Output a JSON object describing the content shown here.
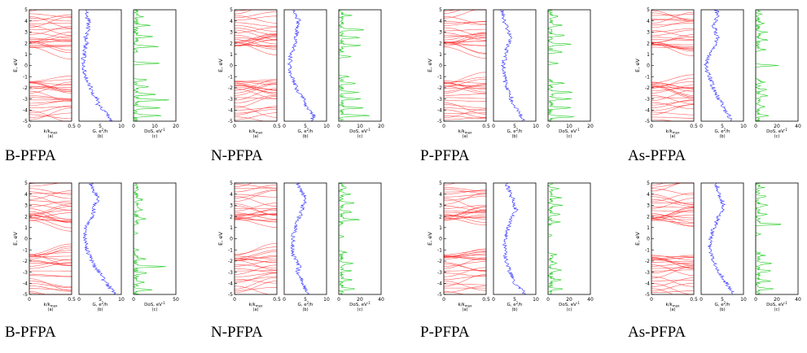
{
  "figure": {
    "captions": [
      "B-PFPA",
      "N-PFPA",
      "P-PFPA",
      "As-PFPA",
      "B-PFPA",
      "N-PFPA",
      "P-PFPA",
      "As-PFPA"
    ],
    "common": {
      "ylabel": "E, eV",
      "ylim": [
        -5,
        5
      ],
      "yticks": [
        "5",
        "4",
        "3",
        "2",
        "1",
        "0",
        "-1",
        "-2",
        "-3",
        "-4",
        "-5"
      ],
      "band_xlabel": "k/k",
      "band_xlabel_sub": "max",
      "g_xlabel": "G, e",
      "g_xlabel_sup": "2",
      "g_xlabel_tail": "/h",
      "dos_xlabel": "DoS, eV",
      "dos_xlabel_sup": "-1",
      "panel_tags": [
        "(a)",
        "(b)",
        "(c)"
      ],
      "colors": {
        "bands": "#ff3333",
        "conductance": "#3333ff",
        "dos": "#22cc22",
        "axis": "#000000"
      }
    }
  },
  "chart_data": [
    {
      "type": "line",
      "title": "B-PFPA",
      "band_xlim": [
        0,
        0.5
      ],
      "band_xticks": [
        "0",
        "0.5"
      ],
      "g_xlim": [
        0,
        10
      ],
      "g_xticks": [
        "0",
        "5",
        "10"
      ],
      "dos_xlim": [
        0,
        20
      ],
      "dos_xticks": [
        "0",
        "10",
        "20"
      ],
      "g_profile": [
        [
          -5,
          7.5
        ],
        [
          -4.5,
          7
        ],
        [
          -4,
          5.5
        ],
        [
          -3.5,
          4.5
        ],
        [
          -3,
          4.2
        ],
        [
          -2.5,
          3.2
        ],
        [
          -2,
          2.8
        ],
        [
          -1.5,
          2.2
        ],
        [
          -1,
          1.5
        ],
        [
          -0.5,
          1.2
        ],
        [
          0,
          1.0
        ],
        [
          0.5,
          1.0
        ],
        [
          1,
          1.2
        ],
        [
          1.5,
          1.5
        ],
        [
          2,
          1.8
        ],
        [
          2.5,
          1.6
        ],
        [
          3,
          2.0
        ],
        [
          3.5,
          2.2
        ],
        [
          4,
          2.4
        ],
        [
          4.5,
          1.7
        ],
        [
          5,
          1.6
        ]
      ],
      "dos_peaks": [
        [
          -4.5,
          13
        ],
        [
          -3.8,
          11
        ],
        [
          -3.1,
          15
        ],
        [
          -2.6,
          10
        ],
        [
          -1.9,
          6
        ],
        [
          -1.3,
          5
        ],
        [
          0.2,
          13
        ],
        [
          1.7,
          10
        ],
        [
          2.6,
          9
        ],
        [
          3.6,
          6
        ],
        [
          4.4,
          3
        ]
      ]
    },
    {
      "type": "line",
      "title": "N-PFPA",
      "band_xlim": [
        0,
        0.5
      ],
      "band_xticks": [
        "0",
        "0.5"
      ],
      "g_xlim": [
        0,
        10
      ],
      "g_xticks": [
        "0",
        "5",
        "10"
      ],
      "dos_xlim": [
        0,
        20
      ],
      "dos_xticks": [
        "0",
        "10",
        "20"
      ],
      "g_profile": [
        [
          -5,
          6.5
        ],
        [
          -4.5,
          7
        ],
        [
          -4,
          6
        ],
        [
          -3.5,
          5
        ],
        [
          -3,
          4.5
        ],
        [
          -2.5,
          3.5
        ],
        [
          -2,
          2.8
        ],
        [
          -1.5,
          2.5
        ],
        [
          -1,
          1.6
        ],
        [
          -0.5,
          1.4
        ],
        [
          0,
          1.2
        ],
        [
          0.5,
          1.4
        ],
        [
          1,
          1.5
        ],
        [
          1.5,
          2.2
        ],
        [
          2,
          2.6
        ],
        [
          2.5,
          2.5
        ],
        [
          3,
          3.0
        ],
        [
          3.5,
          3.0
        ],
        [
          4,
          3.6
        ],
        [
          4.5,
          2.5
        ],
        [
          5,
          2.2
        ]
      ],
      "dos_peaks": [
        [
          -4.5,
          14
        ],
        [
          -3.8,
          11
        ],
        [
          -3.0,
          10
        ],
        [
          -2.4,
          8
        ],
        [
          -1.6,
          7
        ],
        [
          -1.0,
          5
        ],
        [
          0.8,
          6
        ],
        [
          1.8,
          9
        ],
        [
          2.5,
          8
        ],
        [
          3.2,
          12
        ],
        [
          4.5,
          4
        ]
      ]
    },
    {
      "type": "line",
      "title": "P-PFPA",
      "band_xlim": [
        0,
        0.5
      ],
      "band_xticks": [
        "0",
        "0.5"
      ],
      "g_xlim": [
        0,
        10
      ],
      "g_xticks": [
        "0",
        "5",
        "10"
      ],
      "dos_xlim": [
        0,
        20
      ],
      "dos_xticks": [
        "0",
        "10",
        "20"
      ],
      "g_profile": [
        [
          -5,
          7.0
        ],
        [
          -4.5,
          6.5
        ],
        [
          -4,
          5.5
        ],
        [
          -3.5,
          4.8
        ],
        [
          -3,
          4.2
        ],
        [
          -2.5,
          3.8
        ],
        [
          -2,
          3.2
        ],
        [
          -1.5,
          2.8
        ],
        [
          -1,
          2.6
        ],
        [
          -0.5,
          2.4
        ],
        [
          0,
          2.2
        ],
        [
          0.5,
          2.6
        ],
        [
          1,
          2.8
        ],
        [
          1.5,
          3.2
        ],
        [
          2,
          3.8
        ],
        [
          2.5,
          4.0
        ],
        [
          3,
          3.6
        ],
        [
          3.5,
          3.0
        ],
        [
          4,
          2.5
        ],
        [
          4.5,
          2.3
        ],
        [
          5,
          2.0
        ]
      ],
      "dos_peaks": [
        [
          -4.6,
          12
        ],
        [
          -3.8,
          10
        ],
        [
          -3.0,
          9
        ],
        [
          -2.4,
          11
        ],
        [
          -1.6,
          6
        ],
        [
          0.2,
          5
        ],
        [
          1.2,
          7
        ],
        [
          1.9,
          10
        ],
        [
          2.7,
          8
        ],
        [
          3.6,
          6
        ],
        [
          4.4,
          4
        ]
      ]
    },
    {
      "type": "line",
      "title": "As-PFPA",
      "band_xlim": [
        0,
        0.5
      ],
      "band_xticks": [
        "0",
        "0.5"
      ],
      "g_xlim": [
        0,
        10
      ],
      "g_xticks": [
        "0",
        "5",
        "10"
      ],
      "dos_xlim": [
        0,
        40
      ],
      "dos_xticks": [
        "0",
        "20",
        "40"
      ],
      "g_profile": [
        [
          -5,
          7.5
        ],
        [
          -4.5,
          6.5
        ],
        [
          -4,
          5.5
        ],
        [
          -3.5,
          5.0
        ],
        [
          -3,
          4.2
        ],
        [
          -2.5,
          3.6
        ],
        [
          -2,
          2.8
        ],
        [
          -1.5,
          2.5
        ],
        [
          -1,
          2.0
        ],
        [
          -0.5,
          1.5
        ],
        [
          0,
          1.2
        ],
        [
          0.5,
          1.6
        ],
        [
          1,
          2.0
        ],
        [
          1.5,
          2.8
        ],
        [
          2,
          3.5
        ],
        [
          2.5,
          3.8
        ],
        [
          3,
          3.6
        ],
        [
          3.5,
          3.0
        ],
        [
          4,
          3.4
        ],
        [
          4.5,
          4.0
        ],
        [
          5,
          3.5
        ]
      ],
      "dos_peaks": [
        [
          -4.5,
          9
        ],
        [
          -3.7,
          7
        ],
        [
          -2.7,
          8
        ],
        [
          -2.2,
          10
        ],
        [
          -1.5,
          6
        ],
        [
          0,
          22
        ],
        [
          1.4,
          6
        ],
        [
          2.3,
          9
        ],
        [
          3.0,
          7
        ],
        [
          3.8,
          5
        ],
        [
          4.6,
          3
        ]
      ]
    },
    {
      "type": "line",
      "title": "B-PFPA",
      "band_xlim": [
        0,
        0.5
      ],
      "band_xticks": [
        "0",
        "0.5"
      ],
      "g_xlim": [
        0,
        10
      ],
      "g_xticks": [
        "0",
        "5",
        "10"
      ],
      "dos_xlim": [
        0,
        50
      ],
      "dos_xticks": [
        "0",
        "50"
      ],
      "g_profile": [
        [
          -5,
          9.0
        ],
        [
          -4.5,
          7.5
        ],
        [
          -4,
          6.5
        ],
        [
          -3.5,
          5.5
        ],
        [
          -3,
          4.8
        ],
        [
          -2.5,
          3.8
        ],
        [
          -2,
          3.2
        ],
        [
          -1.5,
          2.5
        ],
        [
          -1,
          2.0
        ],
        [
          -0.5,
          1.6
        ],
        [
          0,
          1.4
        ],
        [
          0.5,
          1.5
        ],
        [
          1,
          1.8
        ],
        [
          1.5,
          2.3
        ],
        [
          2,
          3.2
        ],
        [
          2.5,
          3.5
        ],
        [
          3,
          3.8
        ],
        [
          3.5,
          4.5
        ],
        [
          4,
          4.0
        ],
        [
          4.5,
          3.0
        ],
        [
          5,
          2.8
        ]
      ],
      "dos_peaks": [
        [
          -4.6,
          18
        ],
        [
          -3.9,
          12
        ],
        [
          -3.1,
          14
        ],
        [
          -2.5,
          33
        ],
        [
          -1.8,
          10
        ],
        [
          -1.0,
          6
        ],
        [
          0.5,
          5
        ],
        [
          1.8,
          12
        ],
        [
          2.6,
          9
        ],
        [
          3.5,
          8
        ],
        [
          4.4,
          5
        ]
      ]
    },
    {
      "type": "line",
      "title": "N-PFPA",
      "band_xlim": [
        0,
        0.5
      ],
      "band_xticks": [
        "0",
        "0.5"
      ],
      "g_xlim": [
        0,
        10
      ],
      "g_xticks": [
        "0",
        "5",
        "10"
      ],
      "dos_xlim": [
        0,
        40
      ],
      "dos_xticks": [
        "0",
        "20",
        "40"
      ],
      "g_profile": [
        [
          -5,
          5.5
        ],
        [
          -4.5,
          5.0
        ],
        [
          -4,
          4.5
        ],
        [
          -3.5,
          4.0
        ],
        [
          -3,
          3.2
        ],
        [
          -2.5,
          3.5
        ],
        [
          -2,
          3.0
        ],
        [
          -1.5,
          2.2
        ],
        [
          -1,
          1.8
        ],
        [
          -0.5,
          2.0
        ],
        [
          0,
          2.0
        ],
        [
          0.5,
          2.2
        ],
        [
          1,
          2.8
        ],
        [
          1.5,
          3.2
        ],
        [
          2,
          3.6
        ],
        [
          2.5,
          4.2
        ],
        [
          3,
          4.5
        ],
        [
          3.5,
          5.0
        ],
        [
          4,
          4.5
        ],
        [
          4.5,
          3.5
        ],
        [
          5,
          3.2
        ]
      ],
      "dos_peaks": [
        [
          -4.5,
          14
        ],
        [
          -3.7,
          10
        ],
        [
          -2.9,
          9
        ],
        [
          -2.2,
          12
        ],
        [
          -1.2,
          6
        ],
        [
          0.2,
          5
        ],
        [
          1.7,
          16
        ],
        [
          2.4,
          10
        ],
        [
          3.2,
          12
        ],
        [
          4.0,
          8
        ],
        [
          4.6,
          6
        ]
      ]
    },
    {
      "type": "line",
      "title": "P-PFPA",
      "band_xlim": [
        0,
        0.5
      ],
      "band_xticks": [
        "0",
        "0.5"
      ],
      "g_xlim": [
        0,
        10
      ],
      "g_xticks": [
        "0",
        "5",
        "10"
      ],
      "dos_xlim": [
        0,
        40
      ],
      "dos_xticks": [
        "0",
        "20",
        "40"
      ],
      "g_profile": [
        [
          -5,
          7.5
        ],
        [
          -4.5,
          6.5
        ],
        [
          -4,
          5.0
        ],
        [
          -3.5,
          4.5
        ],
        [
          -3,
          3.8
        ],
        [
          -2.5,
          3.5
        ],
        [
          -2,
          3.0
        ],
        [
          -1.5,
          2.8
        ],
        [
          -1,
          2.6
        ],
        [
          -0.5,
          2.8
        ],
        [
          0,
          3.0
        ],
        [
          0.5,
          3.2
        ],
        [
          1,
          3.5
        ],
        [
          1.5,
          4.0
        ],
        [
          2,
          4.5
        ],
        [
          2.5,
          5.5
        ],
        [
          3,
          5.0
        ],
        [
          3.5,
          4.6
        ],
        [
          4,
          4.0
        ],
        [
          4.5,
          3.5
        ],
        [
          5,
          3.0
        ]
      ],
      "dos_peaks": [
        [
          -4.5,
          12
        ],
        [
          -3.7,
          9
        ],
        [
          -2.8,
          11
        ],
        [
          -2.2,
          8
        ],
        [
          -1.4,
          5
        ],
        [
          0.3,
          4
        ],
        [
          1.5,
          8
        ],
        [
          2.2,
          10
        ],
        [
          3.0,
          12
        ],
        [
          3.7,
          9
        ],
        [
          4.5,
          6
        ]
      ]
    },
    {
      "type": "line",
      "title": "As-PFPA",
      "band_xlim": [
        0,
        0.5
      ],
      "band_xticks": [
        "0",
        "0.5"
      ],
      "g_xlim": [
        0,
        10
      ],
      "g_xticks": [
        "0",
        "5",
        "10"
      ],
      "dos_xlim": [
        0,
        40
      ],
      "dos_xticks": [
        "0",
        "20",
        "40"
      ],
      "g_profile": [
        [
          -5,
          7.5
        ],
        [
          -4.5,
          6.8
        ],
        [
          -4,
          6.0
        ],
        [
          -3.5,
          5.0
        ],
        [
          -3,
          4.2
        ],
        [
          -2.5,
          3.6
        ],
        [
          -2,
          3.0
        ],
        [
          -1.5,
          2.4
        ],
        [
          -1,
          2.0
        ],
        [
          -0.5,
          2.2
        ],
        [
          0,
          2.4
        ],
        [
          0.5,
          2.6
        ],
        [
          1,
          3.0
        ],
        [
          1.5,
          3.6
        ],
        [
          2,
          4.2
        ],
        [
          2.5,
          4.8
        ],
        [
          3,
          5.4
        ],
        [
          3.5,
          4.8
        ],
        [
          4,
          4.2
        ],
        [
          4.5,
          4.0
        ],
        [
          5,
          3.5
        ]
      ],
      "dos_peaks": [
        [
          -4.5,
          14
        ],
        [
          -3.8,
          10
        ],
        [
          -2.9,
          12
        ],
        [
          -2.2,
          15
        ],
        [
          -1.5,
          6
        ],
        [
          0.4,
          5
        ],
        [
          1.3,
          22
        ],
        [
          2.2,
          9
        ],
        [
          3.0,
          10
        ],
        [
          3.8,
          7
        ],
        [
          4.6,
          5
        ]
      ]
    }
  ]
}
